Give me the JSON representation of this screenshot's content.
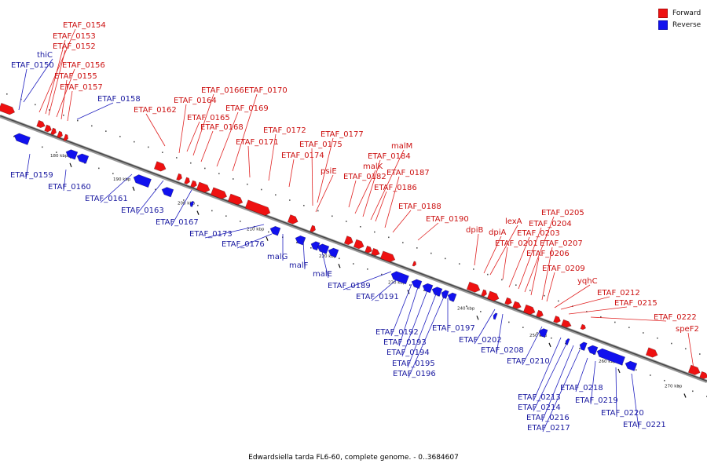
{
  "caption": "Edwardsiella tarda FL6-60, complete genome. - 0..3684607",
  "legend": {
    "forward": "Forward",
    "reverse": "Reverse",
    "forward_color": "#ee1111",
    "reverse_color": "#1111ee"
  },
  "scale_ticks": [
    "180 kbp",
    "190 kbp",
    "200 kbp",
    "210 kbp",
    "220 kbp",
    "230 kbp",
    "240 kbp",
    "250 kbp",
    "260 kbp",
    "270 kbp"
  ],
  "forward_genes": [
    "ETAF_0154",
    "ETAF_0153",
    "ETAF_0152",
    "ETAF_0156",
    "ETAF_0155",
    "ETAF_0157",
    "ETAF_0162",
    "ETAF_0164",
    "ETAF_0165",
    "ETAF_0166",
    "ETAF_0168",
    "ETAF_0169",
    "ETAF_0170",
    "ETAF_0171",
    "ETAF_0172",
    "ETAF_0174",
    "ETAF_0175",
    "ETAF_0177",
    "psiE",
    "ETAF_0182",
    "malK",
    "ETAF_0184",
    "malM",
    "ETAF_0186",
    "ETAF_0187",
    "ETAF_0188",
    "ETAF_0190",
    "dpiB",
    "dpiA",
    "lexA",
    "ETAF_0201",
    "ETAF_0203",
    "ETAF_0204",
    "ETAF_0205",
    "ETAF_0206",
    "ETAF_0207",
    "ETAF_0209",
    "yqhC",
    "ETAF_0212",
    "ETAF_0215",
    "ETAF_0222",
    "speF2"
  ],
  "reverse_genes": [
    "thiC",
    "ETAF_0150",
    "ETAF_0158",
    "ETAF_0159",
    "ETAF_0160",
    "ETAF_0161",
    "ETAF_0163",
    "ETAF_0167",
    "ETAF_0173",
    "ETAF_0176",
    "malG",
    "malF",
    "malE",
    "ETAF_0189",
    "ETAF_0191",
    "ETAF_0192",
    "ETAF_0193",
    "ETAF_0194",
    "ETAF_0195",
    "ETAF_0196",
    "ETAF_0197",
    "ETAF_0202",
    "ETAF_0208",
    "ETAF_0210",
    "ETAF_0213",
    "ETAF_0214",
    "ETAF_0216",
    "ETAF_0217",
    "ETAF_0218",
    "ETAF_0219",
    "ETAF_0220",
    "ETAF_0221"
  ]
}
